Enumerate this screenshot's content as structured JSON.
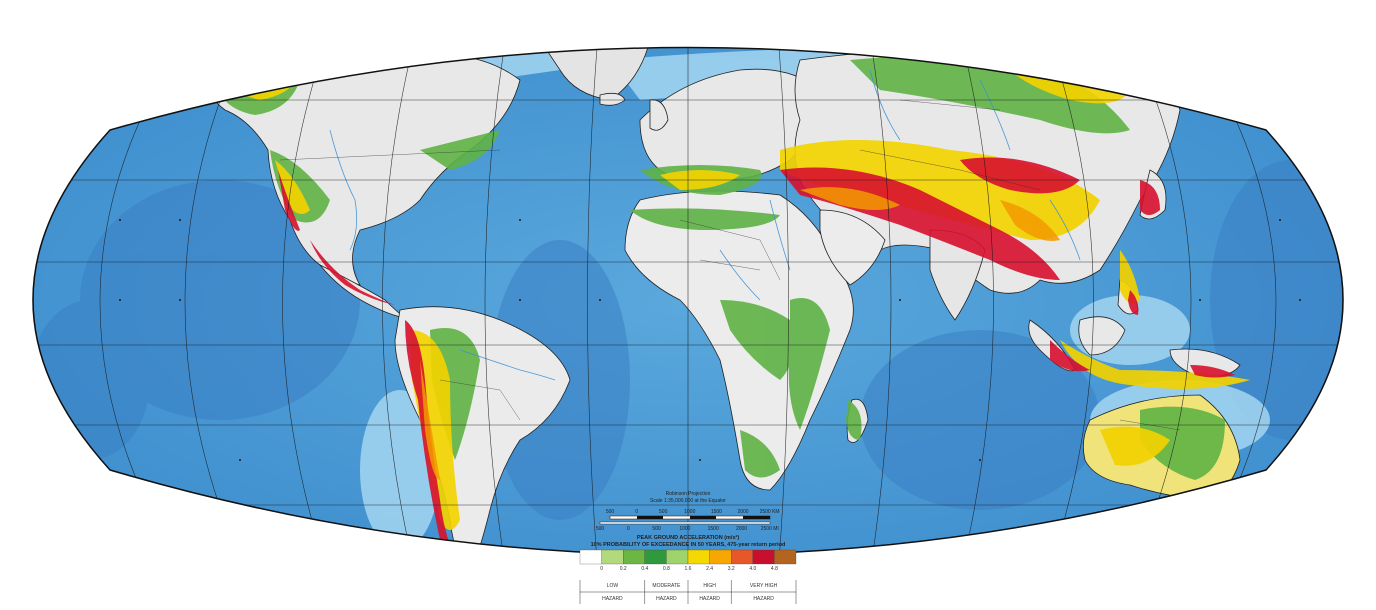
{
  "map": {
    "projection_caption": "Robinson Projection",
    "scale_text": "Scale 1:35,000,000 at the Equator",
    "scale_km": [
      "500",
      "0",
      "500",
      "1000",
      "1500",
      "2000",
      "2500 KM"
    ],
    "scale_mi": [
      "500",
      "0",
      "500",
      "1000",
      "1500",
      "2000",
      "2500 MI"
    ],
    "legend_title": "PEAK GROUND ACCELERATION (m/s²)",
    "legend_subtitle": "10% PROBABILITY OF EXCEEDANCE IN 50 YEARS, 475-year return period",
    "legend_values": [
      "0",
      "0.2",
      "0.4",
      "0.8",
      "1.6",
      "2.4",
      "3.2",
      "4.0",
      "4.8"
    ],
    "legend_colors": [
      "#ffffff",
      "#b3d97d",
      "#6cb644",
      "#2e9a3d",
      "#9fd36b",
      "#f5d800",
      "#f6a800",
      "#e8572a",
      "#c8102e",
      "#b3641e"
    ],
    "hazard_classes": [
      {
        "line1": "LOW",
        "line2": "HAZARD"
      },
      {
        "line1": "MODERATE",
        "line2": "HAZARD"
      },
      {
        "line1": "HIGH",
        "line2": "HAZARD"
      },
      {
        "line1": "VERY HIGH",
        "line2": "HAZARD"
      }
    ],
    "colors": {
      "ocean": "#5aa8dc",
      "ocean_deep": "#3a83c6",
      "shelf": "#a8d8f0",
      "land_low": "#eeeeee",
      "hazard_green": "#5fb245",
      "hazard_yellow": "#f2d200",
      "hazard_orange": "#f29a00",
      "hazard_red": "#d8102e"
    }
  }
}
